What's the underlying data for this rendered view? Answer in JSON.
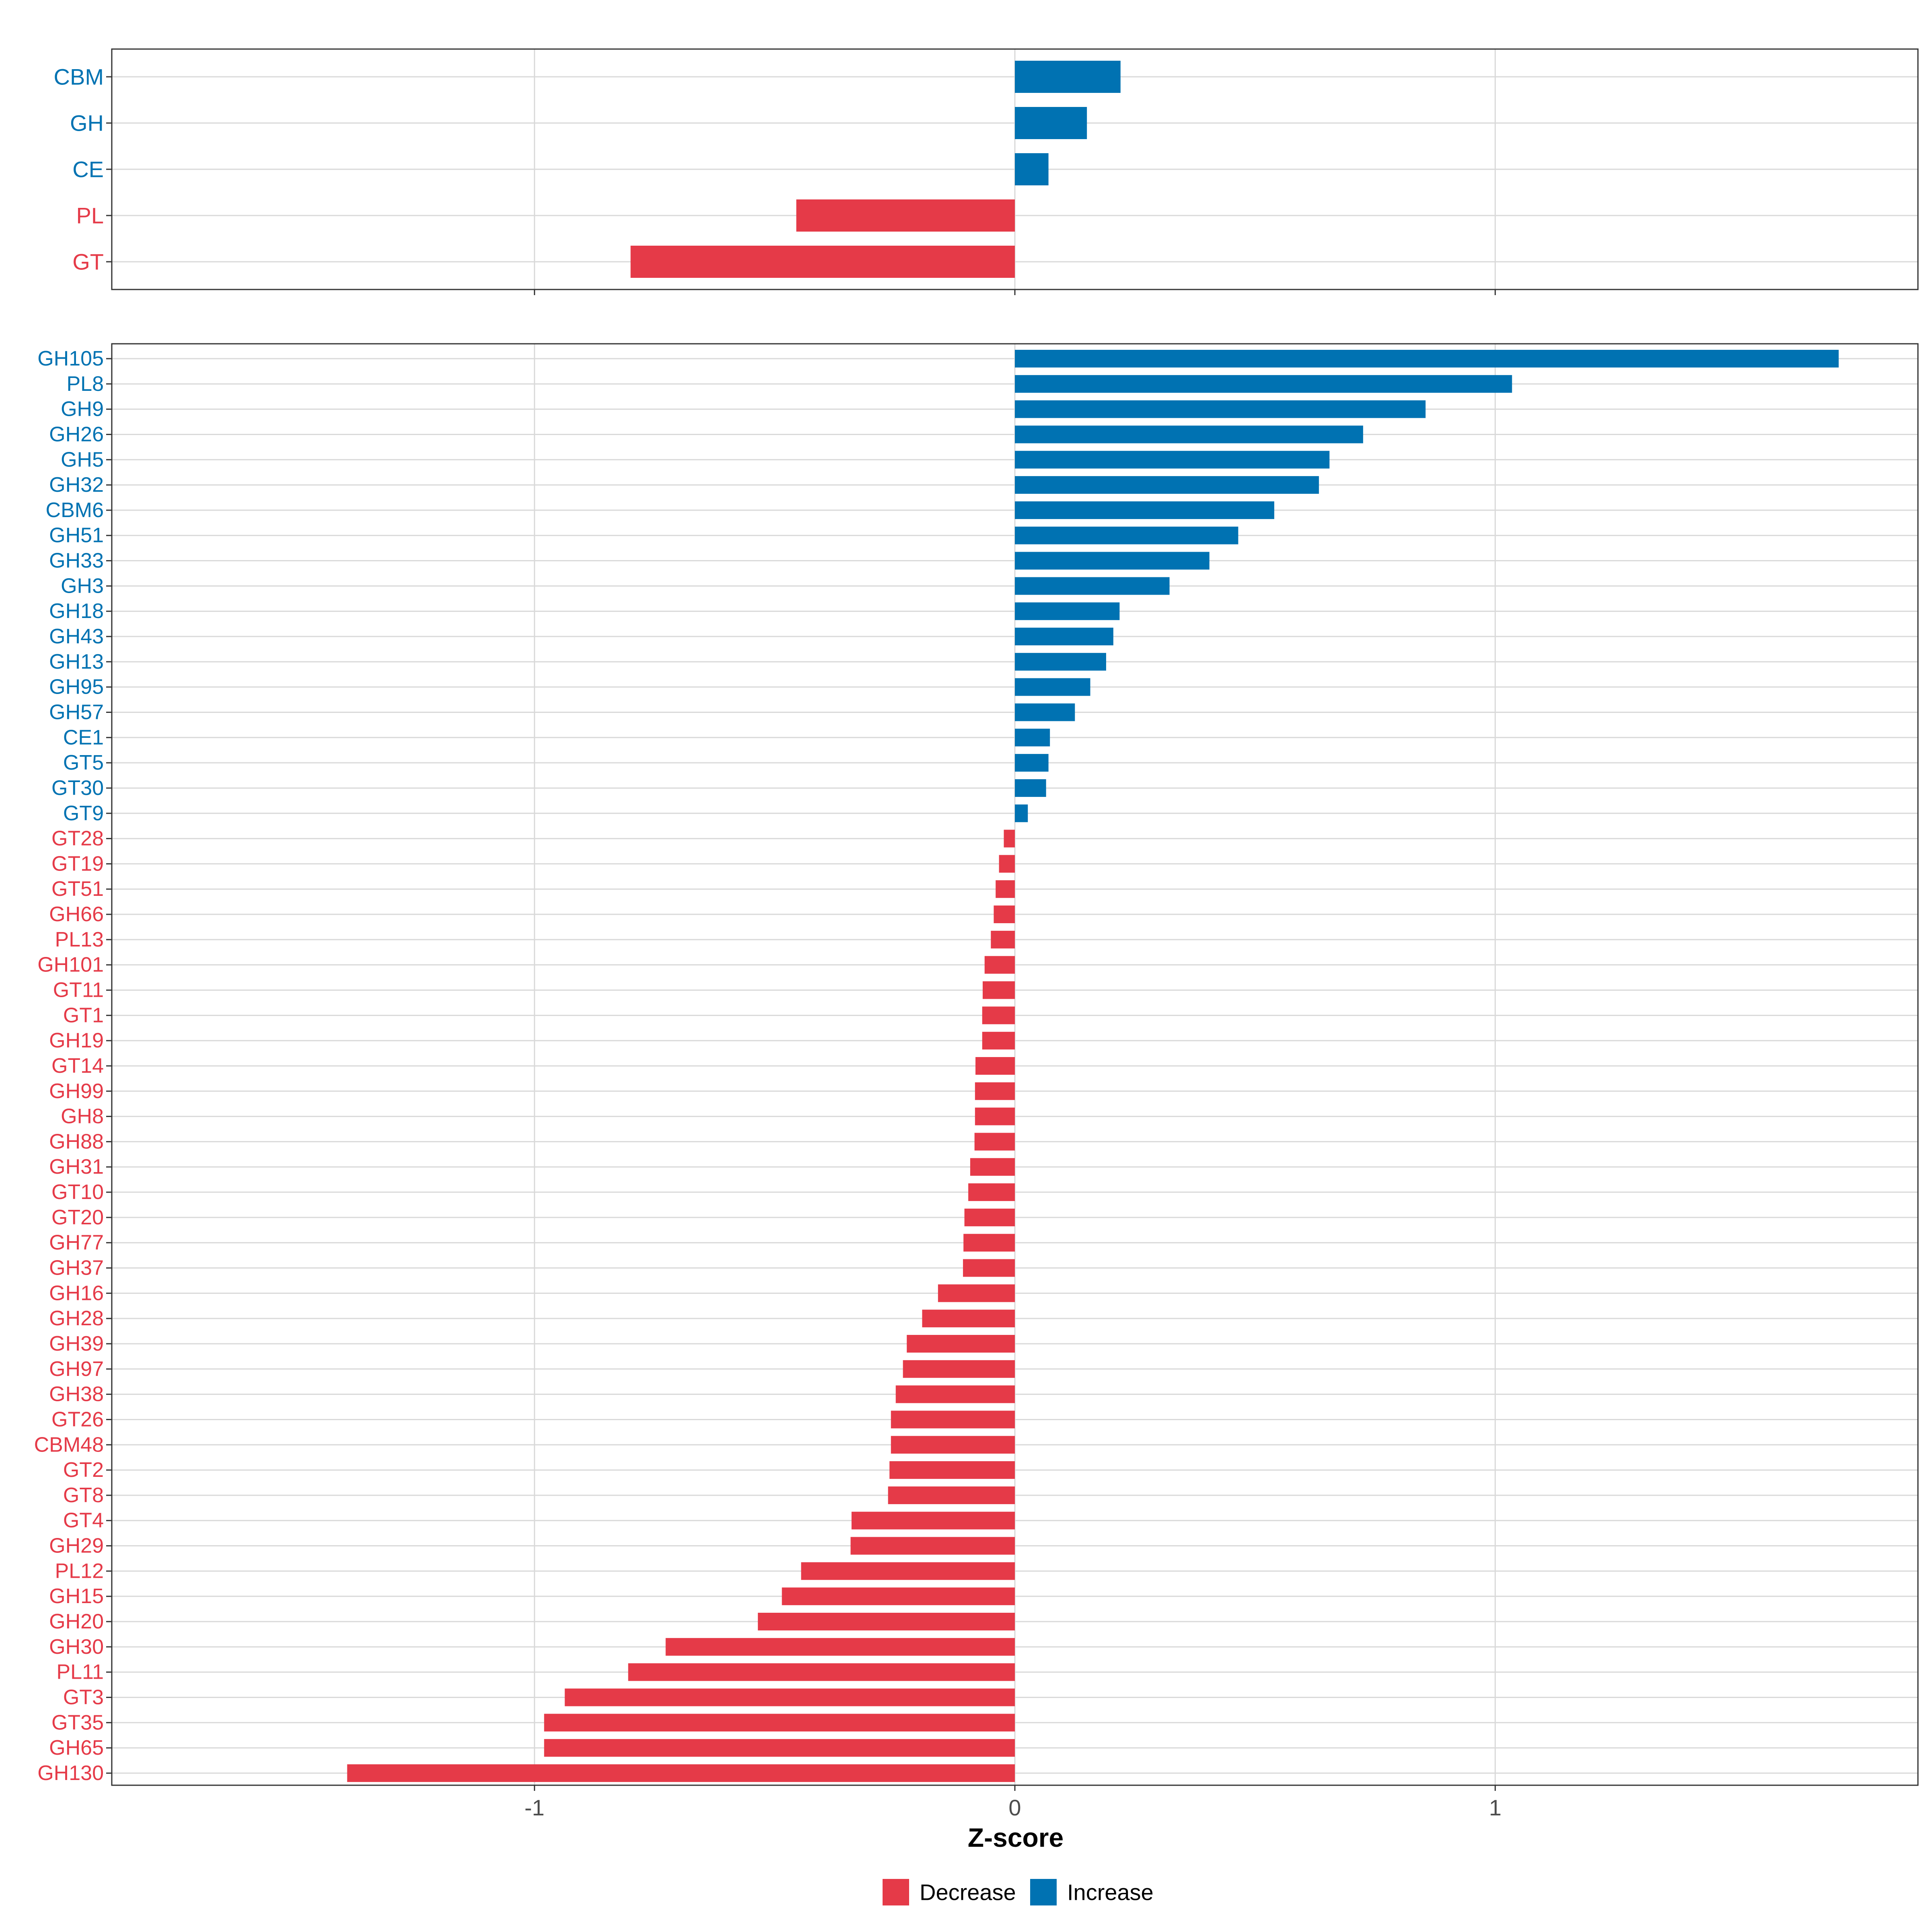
{
  "colors": {
    "increase": "#0072B2",
    "decrease": "#E53A48",
    "grid": "#D9D9D9",
    "panel_border": "#333333",
    "axis_text": "#4D4D4D"
  },
  "chart_data": [
    {
      "type": "bar",
      "orientation": "horizontal",
      "panel": "top",
      "categories": [
        "CBM",
        "GH",
        "CE",
        "PL",
        "GT"
      ],
      "values": [
        0.22,
        0.15,
        0.07,
        -0.455,
        -0.8
      ],
      "xlim": [
        -1.88,
        1.88
      ],
      "xticks": [
        -1,
        0,
        1
      ],
      "show_tick_labels": false,
      "grid": true
    },
    {
      "type": "bar",
      "orientation": "horizontal",
      "panel": "bottom",
      "categories": [
        "GH105",
        "PL8",
        "GH9",
        "GH26",
        "GH5",
        "GH32",
        "CBM6",
        "GH51",
        "GH33",
        "GH3",
        "GH18",
        "GH43",
        "GH13",
        "GH95",
        "GH57",
        "CE1",
        "GT5",
        "GT30",
        "GT9",
        "GT28",
        "GT19",
        "GT51",
        "GH66",
        "PL13",
        "GH101",
        "GT11",
        "GT1",
        "GH19",
        "GT14",
        "GH99",
        "GH8",
        "GH88",
        "GH31",
        "GT10",
        "GT20",
        "GH77",
        "GH37",
        "GH16",
        "GH28",
        "GH39",
        "GH97",
        "GH38",
        "GT26",
        "CBM48",
        "GT2",
        "GT8",
        "GT4",
        "GH29",
        "PL12",
        "GH15",
        "GH20",
        "GH30",
        "PL11",
        "GT3",
        "GT35",
        "GH65",
        "GH130"
      ],
      "values": [
        1.715,
        1.035,
        0.855,
        0.725,
        0.655,
        0.633,
        0.54,
        0.465,
        0.405,
        0.322,
        0.218,
        0.205,
        0.19,
        0.157,
        0.125,
        0.073,
        0.07,
        0.065,
        0.027,
        -0.023,
        -0.033,
        -0.04,
        -0.044,
        -0.05,
        -0.063,
        -0.067,
        -0.068,
        -0.068,
        -0.082,
        -0.083,
        -0.083,
        -0.084,
        -0.093,
        -0.097,
        -0.105,
        -0.107,
        -0.108,
        -0.16,
        -0.193,
        -0.225,
        -0.233,
        -0.248,
        -0.258,
        -0.258,
        -0.261,
        -0.264,
        -0.34,
        -0.342,
        -0.445,
        -0.485,
        -0.535,
        -0.727,
        -0.805,
        -0.937,
        -0.98,
        -0.98,
        -1.39
      ],
      "xlim": [
        -1.88,
        1.88
      ],
      "xticks": [
        -1,
        0,
        1
      ],
      "tick_labels": [
        "-1",
        "0",
        "1"
      ],
      "xlabel": "Z-score",
      "grid": true,
      "legend": {
        "position": "bottom",
        "entries": [
          {
            "label": "Decrease",
            "color": "#E53A48"
          },
          {
            "label": "Increase",
            "color": "#0072B2"
          }
        ]
      }
    }
  ]
}
